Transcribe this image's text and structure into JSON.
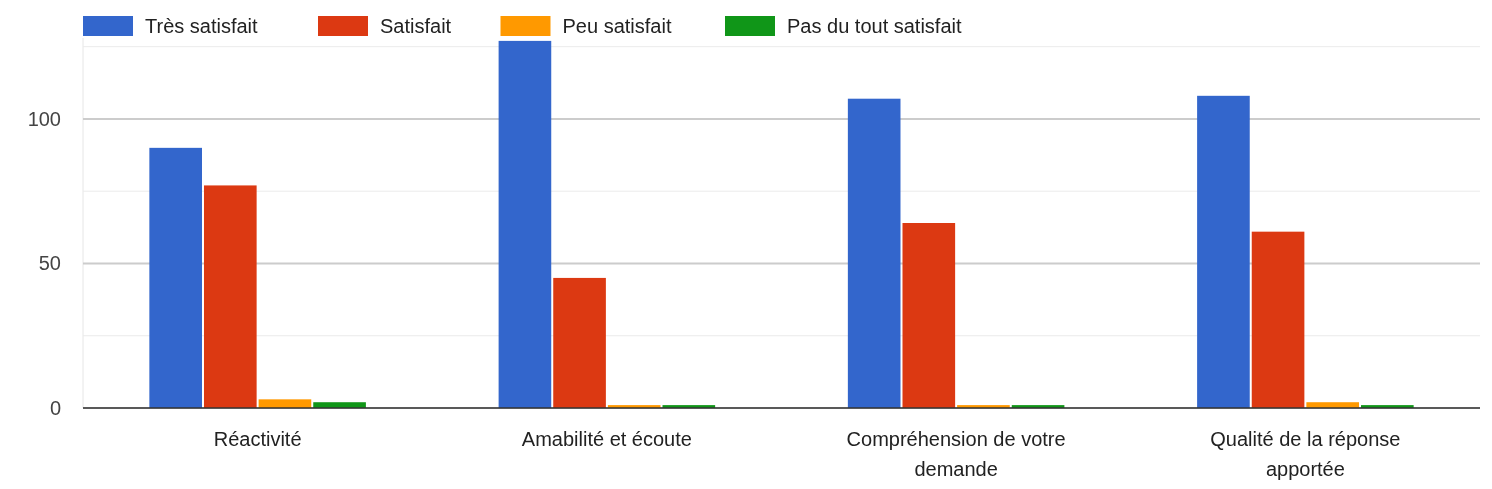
{
  "chart_data": {
    "type": "bar",
    "categories": [
      "Réactivité",
      "Amabilité et écoute",
      "Compréhension de votre demande",
      "Qualité de la réponse apportée"
    ],
    "series": [
      {
        "name": "Très satisfait",
        "color": "#3366cc",
        "values": [
          90,
          127,
          107,
          108
        ]
      },
      {
        "name": "Satisfait",
        "color": "#dc3912",
        "values": [
          77,
          45,
          64,
          61
        ]
      },
      {
        "name": "Peu satisfait",
        "color": "#ff9900",
        "values": [
          3,
          1,
          1,
          2
        ]
      },
      {
        "name": "Pas du tout satisfait",
        "color": "#109618",
        "values": [
          2,
          1,
          1,
          1
        ]
      }
    ],
    "ylim": [
      0,
      128
    ],
    "yticks": [
      0,
      {
        "value": 25,
        "label": null
      },
      50,
      {
        "value": 75,
        "label": null
      },
      100,
      {
        "value": 125,
        "label": null
      }
    ],
    "grid": "y",
    "legend": "top left"
  }
}
